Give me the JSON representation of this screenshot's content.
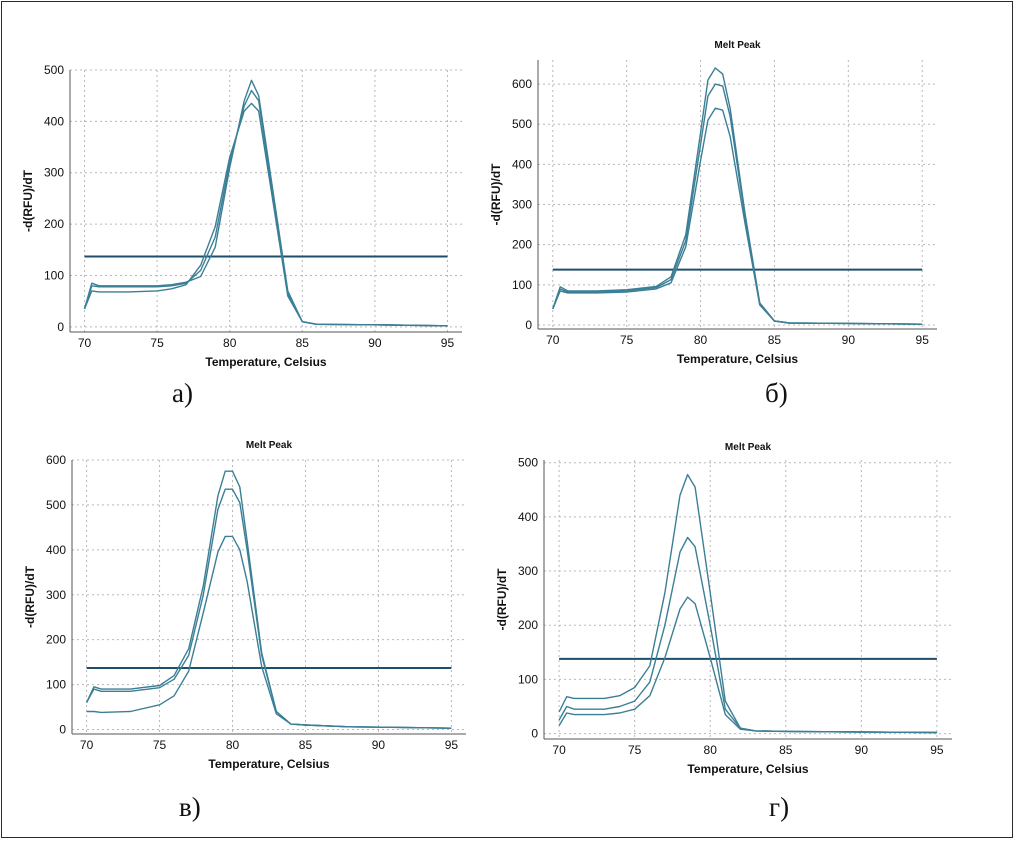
{
  "colors": {
    "curve": "#3b7f96",
    "threshold": "#1d4f6c",
    "grid": "#b8b8b8",
    "axis": "#555555"
  },
  "chart_data": [
    {
      "type": "line",
      "panel_caption": "а)",
      "title": "",
      "xlabel": "Temperature, Celsius",
      "ylabel": "-d(RFU)/dT",
      "xlim": [
        69,
        96
      ],
      "ylim": [
        -10,
        500
      ],
      "x_ticks": [
        70,
        75,
        80,
        85,
        90,
        95
      ],
      "y_ticks": [
        0,
        100,
        200,
        300,
        400,
        500
      ],
      "grid": true,
      "threshold": 137,
      "series": [
        {
          "x": [
            70,
            70.5,
            71,
            73,
            75,
            76,
            77,
            78,
            79,
            80,
            81,
            81.5,
            82,
            83,
            84,
            85,
            86,
            90,
            95
          ],
          "y": [
            35,
            85,
            80,
            80,
            80,
            82,
            87,
            98,
            155,
            310,
            440,
            480,
            450,
            260,
            70,
            10,
            5,
            4,
            2
          ]
        },
        {
          "x": [
            70,
            70.5,
            71,
            73,
            75,
            76,
            77,
            78,
            79,
            80,
            81,
            81.5,
            82,
            83,
            84,
            85,
            86,
            90,
            95
          ],
          "y": [
            35,
            80,
            78,
            78,
            78,
            80,
            85,
            110,
            175,
            320,
            430,
            460,
            440,
            250,
            65,
            10,
            5,
            4,
            2
          ]
        },
        {
          "x": [
            70,
            70.5,
            71,
            73,
            75,
            76,
            77,
            78,
            79,
            80,
            81,
            81.5,
            82,
            83,
            84,
            85,
            86,
            90,
            95
          ],
          "y": [
            35,
            70,
            68,
            68,
            70,
            74,
            82,
            120,
            195,
            330,
            420,
            435,
            420,
            240,
            60,
            10,
            5,
            4,
            2
          ]
        }
      ]
    },
    {
      "type": "line",
      "panel_caption": "б)",
      "title": "Melt Peak",
      "xlabel": "Temperature, Celsius",
      "ylabel": "-d(RFU)/dT",
      "xlim": [
        69,
        96
      ],
      "ylim": [
        -10,
        660
      ],
      "x_ticks": [
        70,
        75,
        80,
        85,
        90,
        95
      ],
      "y_ticks": [
        0,
        100,
        200,
        300,
        400,
        500,
        600
      ],
      "grid": true,
      "threshold": 138,
      "series": [
        {
          "x": [
            70,
            70.5,
            71,
            73,
            75,
            77,
            78,
            79,
            80,
            80.5,
            81,
            81.5,
            82,
            83,
            84,
            85,
            86,
            90,
            95
          ],
          "y": [
            40,
            95,
            85,
            85,
            88,
            96,
            120,
            225,
            480,
            610,
            640,
            625,
            540,
            280,
            55,
            10,
            5,
            4,
            2
          ]
        },
        {
          "x": [
            70,
            70.5,
            71,
            73,
            75,
            77,
            78,
            79,
            80,
            80.5,
            81,
            81.5,
            82,
            83,
            84,
            85,
            86,
            90,
            95
          ],
          "y": [
            40,
            90,
            82,
            82,
            85,
            93,
            113,
            210,
            450,
            570,
            600,
            595,
            520,
            270,
            55,
            10,
            5,
            4,
            2
          ]
        },
        {
          "x": [
            70,
            70.5,
            71,
            73,
            75,
            77,
            78,
            79,
            80,
            80.5,
            81,
            81.5,
            82,
            83,
            84,
            85,
            86,
            90,
            95
          ],
          "y": [
            40,
            85,
            80,
            80,
            82,
            90,
            105,
            195,
            410,
            510,
            540,
            535,
            470,
            255,
            50,
            10,
            5,
            4,
            2
          ]
        }
      ]
    },
    {
      "type": "line",
      "panel_caption": "в)",
      "title": "Melt Peak",
      "xlabel": "Temperature, Celsius",
      "ylabel": "-d(RFU)/dT",
      "xlim": [
        69,
        96
      ],
      "ylim": [
        -10,
        600
      ],
      "x_ticks": [
        70,
        75,
        80,
        85,
        90,
        95
      ],
      "y_ticks": [
        0,
        100,
        200,
        300,
        400,
        500,
        600
      ],
      "grid": true,
      "threshold": 137,
      "series": [
        {
          "x": [
            70,
            70.5,
            71,
            73,
            75,
            76,
            77,
            78,
            79,
            79.5,
            80,
            80.5,
            81,
            82,
            83,
            84,
            85,
            88,
            91,
            95
          ],
          "y": [
            60,
            95,
            90,
            90,
            98,
            120,
            180,
            320,
            520,
            575,
            575,
            540,
            420,
            170,
            40,
            12,
            10,
            6,
            5,
            3
          ]
        },
        {
          "x": [
            70,
            70.5,
            71,
            73,
            75,
            76,
            77,
            78,
            79,
            79.5,
            80,
            80.5,
            81,
            82,
            83,
            84,
            85,
            88,
            91,
            95
          ],
          "y": [
            60,
            90,
            85,
            85,
            93,
            112,
            165,
            300,
            490,
            535,
            535,
            505,
            400,
            165,
            40,
            12,
            10,
            6,
            5,
            3
          ]
        },
        {
          "x": [
            70,
            70.5,
            71,
            73,
            75,
            76,
            77,
            78,
            79,
            79.5,
            80,
            80.5,
            81,
            82,
            83,
            84,
            85,
            88,
            91,
            95
          ],
          "y": [
            40,
            40,
            38,
            40,
            55,
            75,
            130,
            260,
            395,
            430,
            430,
            400,
            330,
            140,
            35,
            12,
            10,
            6,
            5,
            3
          ]
        }
      ]
    },
    {
      "type": "line",
      "panel_caption": "г)",
      "title": "Melt Peak",
      "xlabel": "Temperature, Celsius",
      "ylabel": "-d(RFU)/dT",
      "xlim": [
        69,
        96
      ],
      "ylim": [
        -10,
        505
      ],
      "x_ticks": [
        70,
        75,
        80,
        85,
        90,
        95
      ],
      "y_ticks": [
        0,
        100,
        200,
        300,
        400,
        500
      ],
      "grid": true,
      "threshold": 138,
      "series": [
        {
          "x": [
            70,
            70.5,
            71,
            73,
            74,
            75,
            76,
            77,
            78,
            78.5,
            79,
            80,
            81,
            82,
            83,
            85,
            90,
            95
          ],
          "y": [
            40,
            68,
            65,
            65,
            70,
            85,
            125,
            260,
            440,
            478,
            455,
            260,
            60,
            10,
            5,
            4,
            3,
            2
          ]
        },
        {
          "x": [
            70,
            70.5,
            71,
            73,
            74,
            75,
            76,
            77,
            78,
            78.5,
            79,
            80,
            81,
            82,
            83,
            85,
            90,
            95
          ],
          "y": [
            25,
            50,
            45,
            45,
            50,
            60,
            95,
            200,
            335,
            362,
            345,
            200,
            45,
            10,
            5,
            4,
            3,
            2
          ]
        },
        {
          "x": [
            70,
            70.5,
            71,
            73,
            74,
            75,
            76,
            77,
            78,
            78.5,
            79,
            80,
            81,
            82,
            83,
            85,
            90,
            95
          ],
          "y": [
            15,
            38,
            35,
            35,
            38,
            45,
            70,
            140,
            230,
            252,
            240,
            140,
            35,
            8,
            5,
            4,
            3,
            2
          ]
        }
      ]
    }
  ]
}
